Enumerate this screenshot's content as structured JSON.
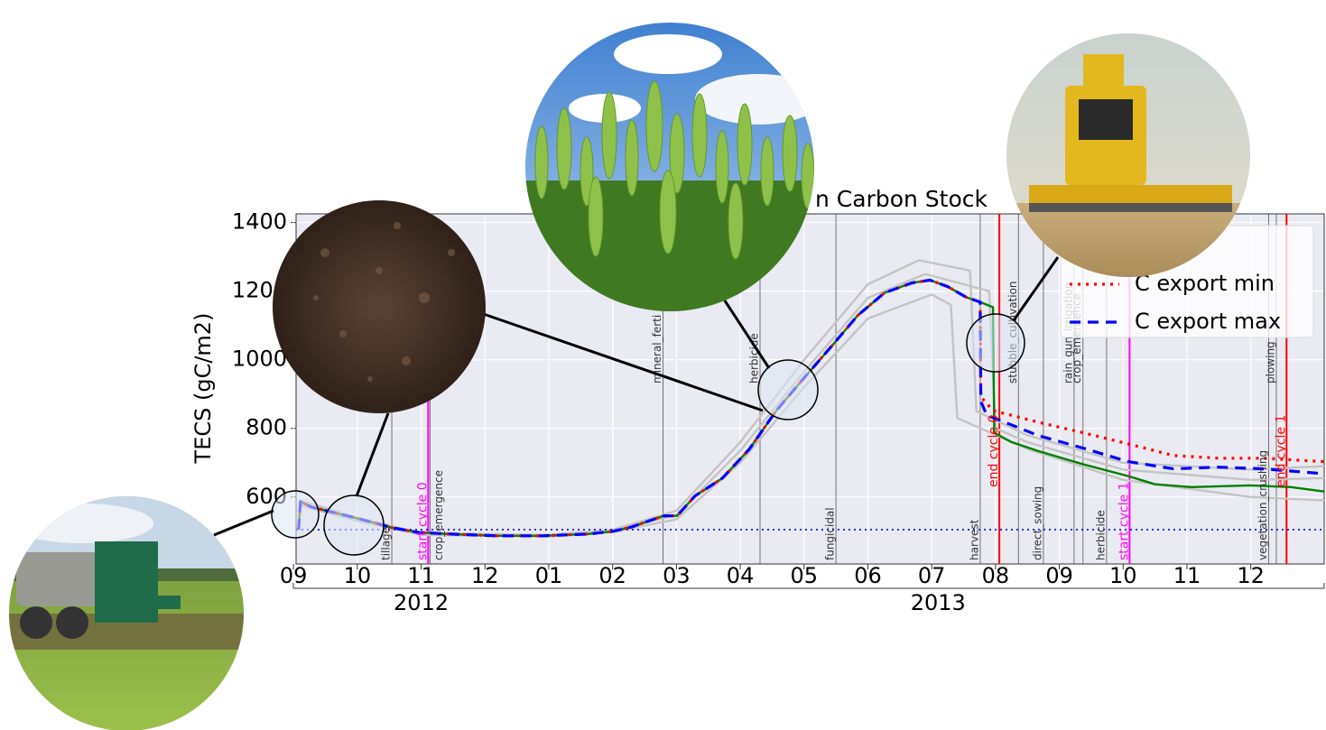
{
  "chart_data": {
    "type": "line",
    "title": "n Carbon Stock",
    "ylabel": "TECS (gC/m2)",
    "xlim": [
      0.04,
      16.15
    ],
    "ylim": [
      405,
      1425
    ],
    "xticks": [
      {
        "value": 0,
        "label": "09"
      },
      {
        "value": 1,
        "label": "10"
      },
      {
        "value": 2,
        "label": "11"
      },
      {
        "value": 3,
        "label": "12"
      },
      {
        "value": 4,
        "label": "01"
      },
      {
        "value": 5,
        "label": "02"
      },
      {
        "value": 6,
        "label": "03"
      },
      {
        "value": 7,
        "label": "04"
      },
      {
        "value": 8,
        "label": "05"
      },
      {
        "value": 9,
        "label": "06"
      },
      {
        "value": 10,
        "label": "07"
      },
      {
        "value": 11,
        "label": "08"
      },
      {
        "value": 12,
        "label": "09"
      },
      {
        "value": 13,
        "label": "10"
      },
      {
        "value": 14,
        "label": "11"
      },
      {
        "value": 15,
        "label": "12"
      }
    ],
    "year_ticks": [
      {
        "value": 2,
        "label": "2012"
      },
      {
        "value": 10.1,
        "label": "2013"
      }
    ],
    "yticks": [
      600,
      800,
      1000,
      1200,
      1400
    ],
    "grid": true,
    "legend": "upper right",
    "hline": {
      "value": 505,
      "color": "#0000ff"
    },
    "series": [
      {
        "color": "#c4c4c4",
        "style": "solid",
        "x": [
          0.08,
          0.11,
          1,
          2,
          4,
          5,
          6,
          7,
          8,
          9,
          9.8,
          10.6,
          10.7,
          11.5,
          13,
          15,
          16.15
        ],
        "values": [
          505,
          590,
          540,
          495,
          490,
          505,
          560,
          760,
          1000,
          1220,
          1290,
          1260,
          850,
          780,
          700,
          680,
          690
        ]
      },
      {
        "color": "#c4c4c4",
        "style": "solid",
        "x": [
          0.08,
          0.11,
          1,
          2,
          4,
          5,
          6,
          7,
          8,
          9,
          10,
          10.3,
          10.4,
          11.5,
          13,
          15,
          16.15
        ],
        "values": [
          505,
          575,
          530,
          490,
          485,
          498,
          535,
          700,
          920,
          1120,
          1190,
          1160,
          830,
          740,
          650,
          600,
          590
        ]
      },
      {
        "color": "#c4c4c4",
        "style": "solid",
        "x": [
          0.08,
          0.11,
          1,
          2,
          4,
          5,
          6,
          7,
          8,
          9,
          9.9,
          10.9,
          11,
          11.5,
          13,
          15,
          16.15
        ],
        "values": [
          505,
          582,
          536,
          494,
          488,
          502,
          548,
          735,
          965,
          1180,
          1250,
          1200,
          800,
          760,
          680,
          650,
          655
        ]
      },
      {
        "color": "#008000",
        "style": "solid",
        "x": [
          0.08,
          0.11,
          0.28,
          1.02,
          1.54,
          1.95,
          2.48,
          3.18,
          3.89,
          4.6,
          5.0,
          5.3,
          5.8,
          6.01,
          6.29,
          6.72,
          7.14,
          7.57,
          7.99,
          8.42,
          8.84,
          9.26,
          9.69,
          9.97,
          10.25,
          10.54,
          10.76,
          10.96,
          10.98,
          11.24,
          11.67,
          12.38,
          13.08,
          13.5,
          14.07,
          14.99,
          15.63,
          16.15
        ],
        "values": [
          505,
          587,
          571,
          537,
          511,
          497,
          492,
          487,
          487,
          492,
          500,
          513,
          545,
          545,
          603,
          655,
          739,
          853,
          945,
          1037,
          1129,
          1195,
          1224,
          1232,
          1213,
          1182,
          1168,
          1153,
          787,
          761,
          734,
          695,
          661,
          637,
          629,
          634,
          629,
          616
        ]
      },
      {
        "name": "C export min",
        "color": "#ff0000",
        "style": "dotted",
        "x": [
          0.08,
          0.11,
          0.28,
          1.02,
          1.54,
          1.95,
          2.48,
          3.18,
          3.89,
          4.6,
          5.0,
          5.3,
          5.8,
          6.01,
          6.29,
          6.72,
          7.14,
          7.57,
          7.99,
          8.42,
          8.84,
          9.26,
          9.69,
          9.97,
          10.25,
          10.54,
          10.76,
          10.77,
          10.96,
          11.67,
          12.38,
          13.08,
          13.79,
          14.5,
          15.2,
          16.15
        ],
        "values": [
          505,
          587,
          571,
          537,
          511,
          497,
          492,
          487,
          487,
          492,
          500,
          513,
          545,
          545,
          603,
          655,
          739,
          853,
          945,
          1037,
          1129,
          1195,
          1224,
          1232,
          1213,
          1182,
          1168,
          892,
          852,
          818,
          787,
          755,
          721,
          713,
          713,
          703
        ]
      },
      {
        "name": "C export max",
        "color": "#0000ff",
        "style": "dashed",
        "x": [
          0.08,
          0.11,
          0.28,
          1.02,
          1.54,
          1.95,
          2.48,
          3.18,
          3.89,
          4.6,
          5.0,
          5.3,
          5.8,
          6.01,
          6.29,
          6.72,
          7.14,
          7.57,
          7.99,
          8.42,
          8.84,
          9.26,
          9.69,
          9.97,
          10.25,
          10.54,
          10.76,
          10.77,
          10.86,
          11.67,
          12.38,
          13.08,
          13.79,
          14.5,
          15.2,
          16.15
        ],
        "values": [
          505,
          587,
          571,
          537,
          511,
          497,
          492,
          487,
          487,
          492,
          500,
          513,
          545,
          545,
          603,
          655,
          739,
          853,
          945,
          1037,
          1129,
          1195,
          1224,
          1232,
          1213,
          1182,
          1168,
          879,
          839,
          779,
          742,
          703,
          682,
          687,
          682,
          668
        ]
      }
    ],
    "events": [
      {
        "x": 1.54,
        "label": "tillage",
        "color": "#555555"
      },
      {
        "x": 2.11,
        "label": "start cycle 0",
        "color": "#ff00ff"
      },
      {
        "x": 2.14,
        "label": "crop_emergence",
        "color": "#555555"
      },
      {
        "x": 5.79,
        "label": "mineral_ferti",
        "color": "#555555"
      },
      {
        "x": 7.31,
        "label": "herbicide",
        "color": "#555555"
      },
      {
        "x": 8.5,
        "label": "fungicidal",
        "color": "#555555"
      },
      {
        "x": 10.76,
        "label": "harvest",
        "color": "#555555"
      },
      {
        "x": 11.06,
        "label": "end cycle 0",
        "color": "#ff0000"
      },
      {
        "x": 11.36,
        "label": "stubble_cultivation",
        "color": "#555555"
      },
      {
        "x": 11.75,
        "label": "direct_sowing",
        "color": "#555555"
      },
      {
        "x": 12.23,
        "label": "rain_gun_irrigation",
        "color": "#555555"
      },
      {
        "x": 12.37,
        "label": "crop_emergence",
        "color": "#555555"
      },
      {
        "x": 12.74,
        "label": "herbicide",
        "color": "#555555"
      },
      {
        "x": 13.1,
        "label": "start cycle 1",
        "color": "#ff00ff"
      },
      {
        "x": 15.28,
        "label": "vegetation_crushing",
        "color": "#555555"
      },
      {
        "x": 15.4,
        "label": "plowing",
        "color": "#555555"
      },
      {
        "x": 15.56,
        "label": "end cycle 1",
        "color": "#ff0000"
      }
    ]
  }
}
